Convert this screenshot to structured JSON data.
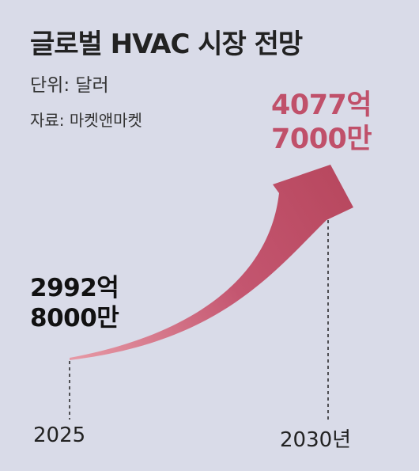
{
  "title": "글로벌 HVAC 시장 전망",
  "unit": "단위: 달러",
  "source": "자료: 마켓앤마켓",
  "colors": {
    "background": "#d9dbe8",
    "arrow_dark": "#b8485f",
    "arrow_light": "#e79aa6",
    "highlight_text": "#c0506a"
  },
  "chart_data": {
    "type": "line",
    "title": "글로벌 HVAC 시장 전망",
    "unit": "단위: 달러",
    "x": [
      "2025",
      "2030년"
    ],
    "values": [
      299280000000,
      407770000000
    ],
    "data_labels": [
      "2992억\n8000만",
      "4077억\n7000만"
    ],
    "xlabel": "",
    "ylabel": "",
    "grid": false
  }
}
